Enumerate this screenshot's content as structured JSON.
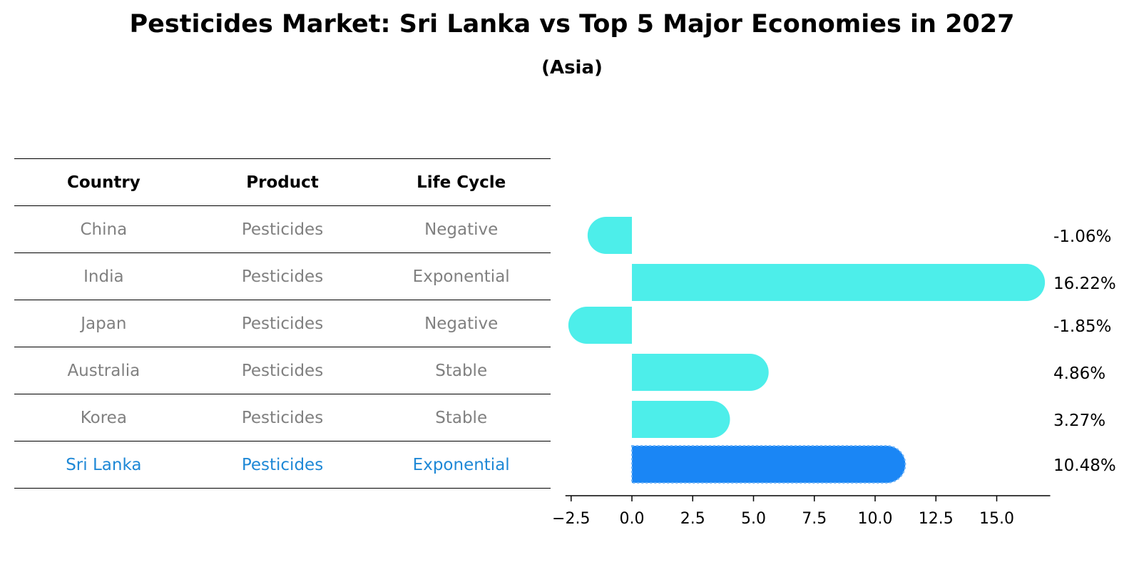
{
  "title": "Pesticides Market: Sri Lanka vs Top 5 Major Economies in 2027",
  "subtitle": "(Asia)",
  "table": {
    "headers": [
      "Country",
      "Product",
      "Life Cycle"
    ],
    "rows": [
      {
        "country": "China",
        "product": "Pesticides",
        "life_cycle": "Negative"
      },
      {
        "country": "India",
        "product": "Pesticides",
        "life_cycle": "Exponential"
      },
      {
        "country": "Japan",
        "product": "Pesticides",
        "life_cycle": "Negative"
      },
      {
        "country": "Australia",
        "product": "Pesticides",
        "life_cycle": "Stable"
      },
      {
        "country": "Korea",
        "product": "Pesticides",
        "life_cycle": "Stable"
      },
      {
        "country": "Sri Lanka",
        "product": "Pesticides",
        "life_cycle": "Exponential",
        "highlight": true
      }
    ]
  },
  "chart_data": {
    "type": "bar",
    "orientation": "horizontal",
    "categories": [
      "China",
      "India",
      "Japan",
      "Australia",
      "Korea",
      "Sri Lanka"
    ],
    "values": [
      -1.06,
      16.22,
      -1.85,
      4.86,
      3.27,
      10.48
    ],
    "value_labels": [
      "-1.06%",
      "16.22%",
      "-1.85%",
      "4.86%",
      "3.27%",
      "10.48%"
    ],
    "highlight_index": 5,
    "xlim": [
      -2.5,
      17.2
    ],
    "xticks": [
      -2.5,
      0.0,
      2.5,
      5.0,
      7.5,
      10.0,
      12.5,
      15.0
    ],
    "xtick_labels": [
      "−2.5",
      "0.0",
      "2.5",
      "5.0",
      "7.5",
      "10.0",
      "12.5",
      "15.0"
    ],
    "colors": {
      "default": "#4deeea",
      "highlight": "#1a86f5"
    }
  }
}
